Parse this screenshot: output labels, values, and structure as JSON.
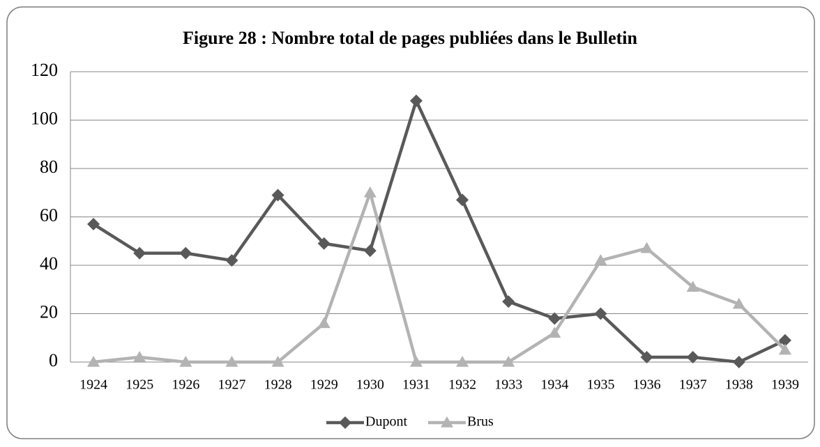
{
  "chart_data": {
    "type": "line",
    "title": "Figure 28 : Nombre total de pages publiées dans le Bulletin",
    "categories": [
      "1924",
      "1925",
      "1926",
      "1927",
      "1928",
      "1929",
      "1930",
      "1931",
      "1932",
      "1933",
      "1934",
      "1935",
      "1936",
      "1937",
      "1938",
      "1939"
    ],
    "series": [
      {
        "name": "Dupont",
        "color": "#595959",
        "marker": "diamond",
        "values": [
          57,
          45,
          45,
          42,
          69,
          49,
          46,
          108,
          67,
          25,
          18,
          20,
          2,
          2,
          0,
          9
        ]
      },
      {
        "name": "Brus",
        "color": "#b3b3b3",
        "marker": "triangle",
        "values": [
          0,
          2,
          0,
          0,
          0,
          16,
          70,
          0,
          0,
          0,
          12,
          42,
          47,
          31,
          24,
          5
        ]
      }
    ],
    "ylim": [
      0,
      120
    ],
    "yticks": [
      0,
      20,
      40,
      60,
      80,
      100,
      120
    ],
    "grid": true,
    "legend": "bottom"
  }
}
